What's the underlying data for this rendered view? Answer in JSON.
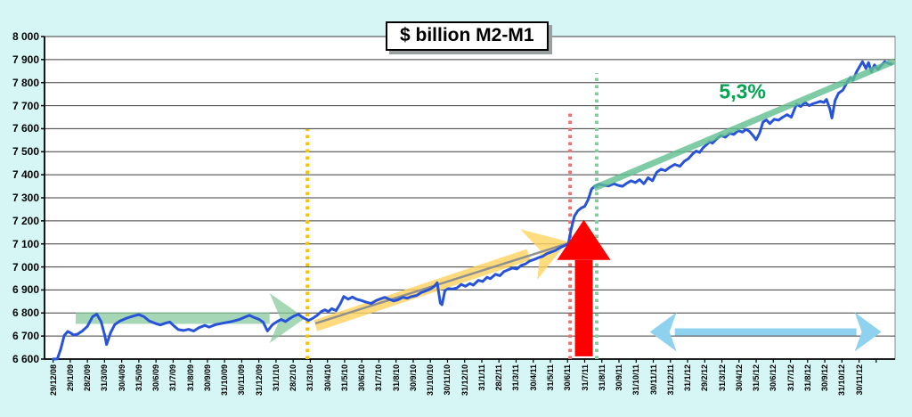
{
  "colors": {
    "background": "#D6F6F6",
    "plot_background": "#FFFFFF",
    "gridline": "#3C3C3C",
    "axis": "#000000",
    "plot_border": "#8C8C8C",
    "series_line": "#2753D9"
  },
  "chart_data": {
    "type": "line",
    "title": "$ billion M2-M1",
    "ylim": [
      6600,
      8000
    ],
    "y_tick_step": 100,
    "grid": true,
    "y_tick_labels": [
      "8 000",
      "7 900",
      "7 800",
      "7 700",
      "7 600",
      "7 500",
      "7 400",
      "7 300",
      "7 200",
      "7 100",
      "7 000",
      "6 900",
      "6 800",
      "6 700",
      "6 600"
    ],
    "x_tick_labels": [
      "29/12/08",
      "29/1/09",
      "28/2/09",
      "31/3/09",
      "30/4/09",
      "31/5/09",
      "30/6/09",
      "31/7/09",
      "31/8/09",
      "30/9/09",
      "31/10/09",
      "30/11/09",
      "31/12/09",
      "31/1/10",
      "28/2/10",
      "31/3/10",
      "30/4/10",
      "31/5/10",
      "30/6/10",
      "31/7/10",
      "31/8/10",
      "30/9/10",
      "31/10/10",
      "30/11/10",
      "31/12/10",
      "31/1/11",
      "28/2/11",
      "31/3/11",
      "30/4/11",
      "31/5/11",
      "30/6/11",
      "31/7/11",
      "31/8/11",
      "30/9/11",
      "31/10/11",
      "30/11/11",
      "31/12/11",
      "31/1/12",
      "29/2/12",
      "31/3/12",
      "30/4/12",
      "31/5/12",
      "30/6/12",
      "31/7/12",
      "31/8/12",
      "30/9/12",
      "31/10/12",
      "30/11/12"
    ],
    "series": [
      {
        "name": "M2-M1",
        "color": "#2753D9",
        "points": [
          [
            0,
            6600
          ],
          [
            0.25,
            6601
          ],
          [
            0.45,
            6645
          ],
          [
            0.65,
            6702
          ],
          [
            0.85,
            6720
          ],
          [
            1.05,
            6712
          ],
          [
            1.2,
            6704
          ],
          [
            1.45,
            6709
          ],
          [
            1.7,
            6722
          ],
          [
            2,
            6742
          ],
          [
            2.3,
            6784
          ],
          [
            2.55,
            6795
          ],
          [
            2.8,
            6763
          ],
          [
            3,
            6706
          ],
          [
            3.12,
            6663
          ],
          [
            3.35,
            6714
          ],
          [
            3.6,
            6750
          ],
          [
            3.9,
            6765
          ],
          [
            4.3,
            6778
          ],
          [
            4.7,
            6787
          ],
          [
            5,
            6793
          ],
          [
            5.3,
            6784
          ],
          [
            5.6,
            6766
          ],
          [
            5.95,
            6755
          ],
          [
            6.25,
            6748
          ],
          [
            6.55,
            6756
          ],
          [
            6.8,
            6761
          ],
          [
            7.05,
            6744
          ],
          [
            7.3,
            6728
          ],
          [
            7.6,
            6724
          ],
          [
            7.9,
            6729
          ],
          [
            8.2,
            6722
          ],
          [
            8.5,
            6736
          ],
          [
            8.85,
            6746
          ],
          [
            9.1,
            6739
          ],
          [
            9.5,
            6750
          ],
          [
            9.9,
            6756
          ],
          [
            10.4,
            6763
          ],
          [
            10.9,
            6773
          ],
          [
            11.2,
            6783
          ],
          [
            11.45,
            6790
          ],
          [
            11.7,
            6781
          ],
          [
            12,
            6773
          ],
          [
            12.25,
            6760
          ],
          [
            12.5,
            6722
          ],
          [
            12.8,
            6750
          ],
          [
            13.05,
            6762
          ],
          [
            13.3,
            6772
          ],
          [
            13.55,
            6763
          ],
          [
            13.8,
            6776
          ],
          [
            14.05,
            6787
          ],
          [
            14.3,
            6794
          ],
          [
            14.6,
            6779
          ],
          [
            14.9,
            6768
          ],
          [
            15.15,
            6777
          ],
          [
            15.4,
            6790
          ],
          [
            15.65,
            6807
          ],
          [
            15.85,
            6814
          ],
          [
            16.05,
            6806
          ],
          [
            16.25,
            6819
          ],
          [
            16.5,
            6810
          ],
          [
            16.75,
            6840
          ],
          [
            16.95,
            6872
          ],
          [
            17.2,
            6860
          ],
          [
            17.45,
            6869
          ],
          [
            17.7,
            6860
          ],
          [
            17.95,
            6855
          ],
          [
            18.25,
            6847
          ],
          [
            18.55,
            6841
          ],
          [
            18.85,
            6855
          ],
          [
            19.1,
            6862
          ],
          [
            19.35,
            6868
          ],
          [
            19.6,
            6860
          ],
          [
            19.85,
            6852
          ],
          [
            20.1,
            6857
          ],
          [
            20.4,
            6868
          ],
          [
            20.65,
            6864
          ],
          [
            20.9,
            6871
          ],
          [
            21.2,
            6876
          ],
          [
            21.45,
            6888
          ],
          [
            21.7,
            6895
          ],
          [
            21.95,
            6902
          ],
          [
            22.2,
            6914
          ],
          [
            22.4,
            6931
          ],
          [
            22.58,
            6843
          ],
          [
            22.68,
            6836
          ],
          [
            22.85,
            6898
          ],
          [
            23.05,
            6906
          ],
          [
            23.3,
            6904
          ],
          [
            23.55,
            6909
          ],
          [
            23.8,
            6924
          ],
          [
            24.05,
            6916
          ],
          [
            24.3,
            6928
          ],
          [
            24.5,
            6921
          ],
          [
            24.8,
            6942
          ],
          [
            25.05,
            6937
          ],
          [
            25.3,
            6955
          ],
          [
            25.5,
            6949
          ],
          [
            25.8,
            6968
          ],
          [
            26.05,
            6962
          ],
          [
            26.3,
            6980
          ],
          [
            26.55,
            6988
          ],
          [
            26.8,
            6995
          ],
          [
            27.05,
            6991
          ],
          [
            27.3,
            7007
          ],
          [
            27.55,
            7013
          ],
          [
            27.8,
            7026
          ],
          [
            28.05,
            7032
          ],
          [
            28.3,
            7040
          ],
          [
            28.55,
            7046
          ],
          [
            28.8,
            7058
          ],
          [
            29.05,
            7065
          ],
          [
            29.3,
            7072
          ],
          [
            29.55,
            7083
          ],
          [
            29.8,
            7092
          ],
          [
            30.05,
            7102
          ],
          [
            30.2,
            7160
          ],
          [
            30.4,
            7220
          ],
          [
            30.6,
            7244
          ],
          [
            30.8,
            7256
          ],
          [
            31,
            7263
          ],
          [
            31.2,
            7292
          ],
          [
            31.4,
            7338
          ],
          [
            31.6,
            7352
          ],
          [
            31.85,
            7360
          ],
          [
            32.1,
            7354
          ],
          [
            32.4,
            7352
          ],
          [
            32.7,
            7361
          ],
          [
            32.95,
            7354
          ],
          [
            33.2,
            7350
          ],
          [
            33.45,
            7363
          ],
          [
            33.7,
            7374
          ],
          [
            33.95,
            7366
          ],
          [
            34.2,
            7379
          ],
          [
            34.45,
            7361
          ],
          [
            34.7,
            7387
          ],
          [
            34.95,
            7374
          ],
          [
            35.2,
            7411
          ],
          [
            35.45,
            7424
          ],
          [
            35.7,
            7418
          ],
          [
            35.95,
            7432
          ],
          [
            36.25,
            7445
          ],
          [
            36.55,
            7437
          ],
          [
            36.8,
            7458
          ],
          [
            37.05,
            7470
          ],
          [
            37.3,
            7491
          ],
          [
            37.5,
            7503
          ],
          [
            37.7,
            7497
          ],
          [
            37.9,
            7517
          ],
          [
            38.1,
            7530
          ],
          [
            38.3,
            7544
          ],
          [
            38.45,
            7537
          ],
          [
            38.7,
            7556
          ],
          [
            38.95,
            7570
          ],
          [
            39.2,
            7563
          ],
          [
            39.45,
            7580
          ],
          [
            39.7,
            7575
          ],
          [
            39.95,
            7592
          ],
          [
            40.2,
            7585
          ],
          [
            40.4,
            7597
          ],
          [
            40.6,
            7589
          ],
          [
            40.8,
            7572
          ],
          [
            41,
            7552
          ],
          [
            41.2,
            7581
          ],
          [
            41.4,
            7629
          ],
          [
            41.6,
            7638
          ],
          [
            41.8,
            7622
          ],
          [
            42.05,
            7641
          ],
          [
            42.3,
            7637
          ],
          [
            42.55,
            7650
          ],
          [
            42.8,
            7661
          ],
          [
            43.05,
            7650
          ],
          [
            43.35,
            7706
          ],
          [
            43.6,
            7696
          ],
          [
            43.85,
            7714
          ],
          [
            44.1,
            7700
          ],
          [
            44.3,
            7708
          ],
          [
            44.55,
            7714
          ],
          [
            44.75,
            7719
          ],
          [
            44.95,
            7714
          ],
          [
            45.1,
            7727
          ],
          [
            45.3,
            7686
          ],
          [
            45.42,
            7646
          ],
          [
            45.6,
            7722
          ],
          [
            45.8,
            7754
          ],
          [
            46.05,
            7767
          ],
          [
            46.3,
            7801
          ],
          [
            46.5,
            7822
          ],
          [
            46.65,
            7811
          ],
          [
            46.85,
            7846
          ],
          [
            47.05,
            7872
          ],
          [
            47.2,
            7891
          ],
          [
            47.4,
            7861
          ],
          [
            47.55,
            7887
          ],
          [
            47.72,
            7847
          ],
          [
            47.9,
            7877
          ],
          [
            48.1,
            7857
          ],
          [
            48.3,
            7875
          ],
          [
            48.5,
            7891
          ],
          [
            48.7,
            7884
          ],
          [
            48.9,
            7880
          ]
        ]
      }
    ],
    "annotations": {
      "growth_label": {
        "text": "5,3%",
        "x": 40.2,
        "value": 7762,
        "color": "#00A550"
      },
      "flat_trend_arrow": {
        "x1": 1.32,
        "x2": 14.7,
        "value": 6778,
        "color": "#83C99A"
      },
      "rising_trend_arrow": {
        "x1": 15.3,
        "v1": 6745,
        "x2": 30.0,
        "v2": 7110,
        "color": "#FFD35E"
      },
      "gray_trendline": {
        "x1": 15.3,
        "v1": 6755,
        "x2": 30.15,
        "v2": 7105,
        "color": "#909090"
      },
      "steep_trendline": {
        "x1": 31.55,
        "v1": 7342,
        "x2": 49.05,
        "v2": 7893,
        "color": "#5FBF8F"
      },
      "orange_dotted_line": {
        "x": 14.83,
        "v1": 6600,
        "v2": 7598,
        "color": "#FFC000"
      },
      "red_dotted_line": {
        "x": 30.15,
        "v1": 6600,
        "v2": 7683,
        "color": "#F47070"
      },
      "green_dotted_line": {
        "x": 31.7,
        "v1": 6600,
        "v2": 7841,
        "color": "#82CD9E"
      },
      "red_up_arrow": {
        "x": 30.95,
        "v_base": 6612,
        "v_neck": 7030,
        "v_tip": 7205,
        "color": "#FE0000"
      },
      "blue_double_arrow": {
        "x1": 34.8,
        "x2": 48.3,
        "value": 6718,
        "color": "#8FD2F0"
      }
    }
  }
}
